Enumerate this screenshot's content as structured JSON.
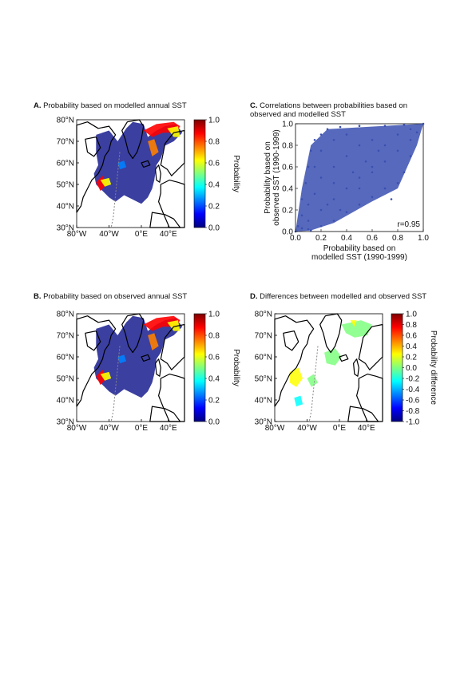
{
  "panels": {
    "a": {
      "letter": "A.",
      "title": "Probability based on modelled annual SST"
    },
    "b": {
      "letter": "B.",
      "title": "Probability based on observed annual SST"
    },
    "c": {
      "letter": "C.",
      "title_line1": "Correlations between probabilities based on",
      "title_line2": "observed and modelled SST"
    },
    "d": {
      "letter": "D.",
      "title": "Differences between modelled and observed SST"
    }
  },
  "map_axes": {
    "lat_labels": [
      "80°N",
      "70°N",
      "60°N",
      "50°N",
      "40°N",
      "30°N"
    ],
    "lon_labels": [
      "80°W",
      "40°W",
      "0°E",
      "40°E"
    ]
  },
  "colorbar_prob": {
    "label": "Probability",
    "ticks": [
      "1.0",
      "0.8",
      "0.6",
      "0.4",
      "0.2",
      "0.0"
    ]
  },
  "colorbar_diff": {
    "label": "Probability difference",
    "ticks": [
      "1.0",
      "0.8",
      "0.6",
      "0.4",
      "0.2",
      "0.0",
      "-0.2",
      "-0.4",
      "-0.6",
      "-0.8",
      "-1.0"
    ]
  },
  "colors": {
    "jet": [
      "#00007f",
      "#0000ff",
      "#007fff",
      "#00ffff",
      "#7fff7f",
      "#ffff00",
      "#ff7f00",
      "#ff0000",
      "#7f0000"
    ],
    "ocean_blue": "#3b3fa0",
    "scatter": "#3a4fb0"
  },
  "chart_data": {
    "type": "scatter",
    "title": "Correlations between probabilities based on observed and modelled SST",
    "xlabel_line1": "Probability based on",
    "xlabel_line2": "modelled SST (1990-1999)",
    "ylabel_line1": "Probability based on",
    "ylabel_line2": "observed SST (1990-1999)",
    "xlim": [
      0,
      1
    ],
    "ylim": [
      0,
      1
    ],
    "x_ticks": [
      "0.0",
      "0.2",
      "0.4",
      "0.6",
      "0.8",
      "1.0"
    ],
    "y_ticks": [
      "0.0",
      "0.2",
      "0.4",
      "0.6",
      "0.8",
      "1.0"
    ],
    "annotation": "r=0.95",
    "series": [
      {
        "points": [
          [
            0.0,
            0.0
          ],
          [
            0.02,
            0.05
          ],
          [
            0.05,
            0.15
          ],
          [
            0.05,
            0.3
          ],
          [
            0.08,
            0.45
          ],
          [
            0.1,
            0.6
          ],
          [
            0.12,
            0.75
          ],
          [
            0.15,
            0.85
          ],
          [
            0.2,
            0.9
          ],
          [
            0.25,
            0.95
          ],
          [
            0.35,
            0.97
          ],
          [
            0.5,
            0.98
          ],
          [
            0.7,
            0.98
          ],
          [
            0.85,
            0.99
          ],
          [
            1.0,
            1.0
          ],
          [
            0.1,
            0.1
          ],
          [
            0.2,
            0.2
          ],
          [
            0.3,
            0.3
          ],
          [
            0.4,
            0.4
          ],
          [
            0.5,
            0.5
          ],
          [
            0.6,
            0.55
          ],
          [
            0.7,
            0.65
          ],
          [
            0.8,
            0.75
          ],
          [
            0.9,
            0.85
          ],
          [
            0.95,
            0.92
          ],
          [
            0.2,
            0.05
          ],
          [
            0.3,
            0.1
          ],
          [
            0.4,
            0.18
          ],
          [
            0.5,
            0.25
          ],
          [
            0.6,
            0.32
          ],
          [
            0.7,
            0.4
          ],
          [
            0.75,
            0.3
          ],
          [
            0.8,
            0.45
          ],
          [
            0.85,
            0.55
          ],
          [
            0.9,
            0.7
          ],
          [
            0.3,
            0.6
          ],
          [
            0.4,
            0.7
          ],
          [
            0.5,
            0.8
          ],
          [
            0.6,
            0.85
          ],
          [
            0.2,
            0.5
          ],
          [
            0.3,
            0.45
          ],
          [
            0.45,
            0.55
          ],
          [
            0.55,
            0.65
          ],
          [
            0.65,
            0.75
          ],
          [
            0.15,
            0.35
          ],
          [
            0.25,
            0.25
          ],
          [
            0.35,
            0.2
          ],
          [
            0.5,
            0.4
          ],
          [
            0.6,
            0.6
          ],
          [
            0.7,
            0.8
          ],
          [
            0.8,
            0.9
          ],
          [
            0.9,
            0.95
          ],
          [
            0.1,
            0.25
          ],
          [
            0.15,
            0.6
          ],
          [
            0.2,
            0.75
          ],
          [
            0.3,
            0.85
          ],
          [
            0.4,
            0.9
          ],
          [
            0.05,
            0.03
          ],
          [
            0.1,
            0.02
          ],
          [
            0.12,
            0.01
          ]
        ]
      }
    ]
  }
}
